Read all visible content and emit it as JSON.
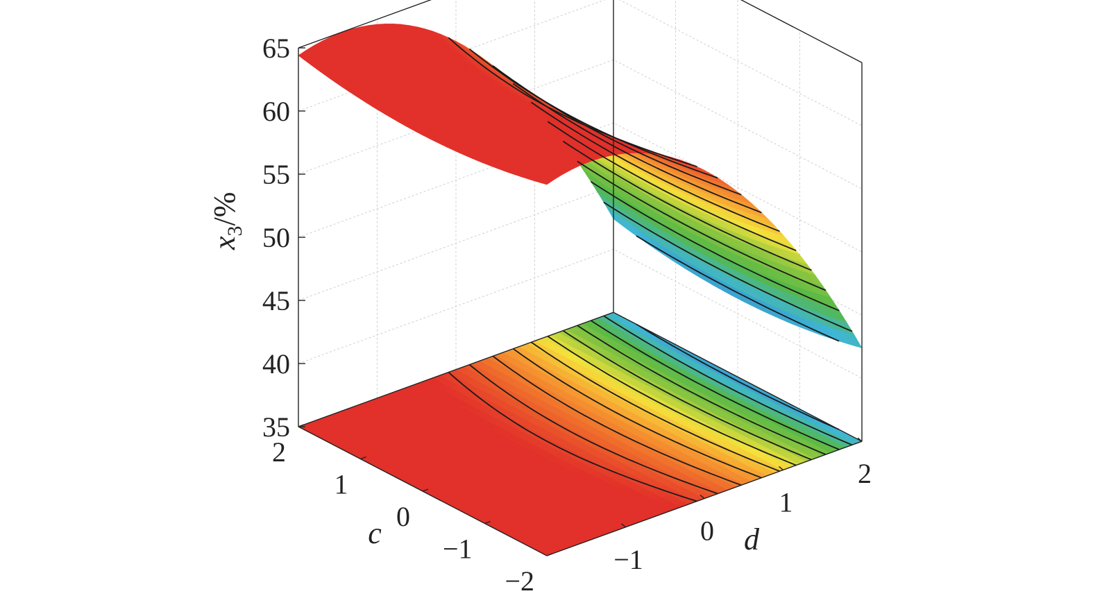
{
  "chart_data": {
    "type": "surface3d",
    "title": "",
    "xlabel": "c",
    "ylabel": "d",
    "zlabel_main": "x",
    "zlabel_sub": "3",
    "zlabel_unit": "/%",
    "xlim": [
      -2,
      2
    ],
    "ylim": [
      -2,
      2
    ],
    "zlim": [
      35,
      65
    ],
    "x_ticks": [
      {
        "v": 2,
        "label": "2"
      },
      {
        "v": 1,
        "label": "1"
      },
      {
        "v": 0,
        "label": "0"
      },
      {
        "v": -1,
        "label": "−1"
      },
      {
        "v": -2,
        "label": "−2"
      }
    ],
    "y_ticks": [
      {
        "v": -1,
        "label": "−1"
      },
      {
        "v": 0,
        "label": "0"
      },
      {
        "v": 1,
        "label": "1"
      },
      {
        "v": 2,
        "label": "2"
      }
    ],
    "z_ticks": [
      {
        "v": 35,
        "label": "35"
      },
      {
        "v": 40,
        "label": "40"
      },
      {
        "v": 45,
        "label": "45"
      },
      {
        "v": 50,
        "label": "50"
      },
      {
        "v": 55,
        "label": "55"
      },
      {
        "v": 60,
        "label": "60"
      },
      {
        "v": 65,
        "label": "65"
      }
    ],
    "surface": {
      "model": "response surface (approximate)",
      "b0": 59.8,
      "b_c": 0.0,
      "b_d": -5.5,
      "b_cc": 0.3,
      "b_dd": -1.9,
      "b_cd": 0.0,
      "resolution": 40,
      "contour_levels": [
        38,
        40,
        42,
        44,
        46,
        48,
        50,
        52,
        54,
        56,
        58,
        60,
        61.5
      ]
    },
    "colormap": [
      "#2a2f8f",
      "#2c68b8",
      "#3fb6d6",
      "#55b848",
      "#8dc63f",
      "#f4e23c",
      "#f7a132",
      "#ee6a2c",
      "#e2302a"
    ],
    "grid": true,
    "legend": "none"
  }
}
